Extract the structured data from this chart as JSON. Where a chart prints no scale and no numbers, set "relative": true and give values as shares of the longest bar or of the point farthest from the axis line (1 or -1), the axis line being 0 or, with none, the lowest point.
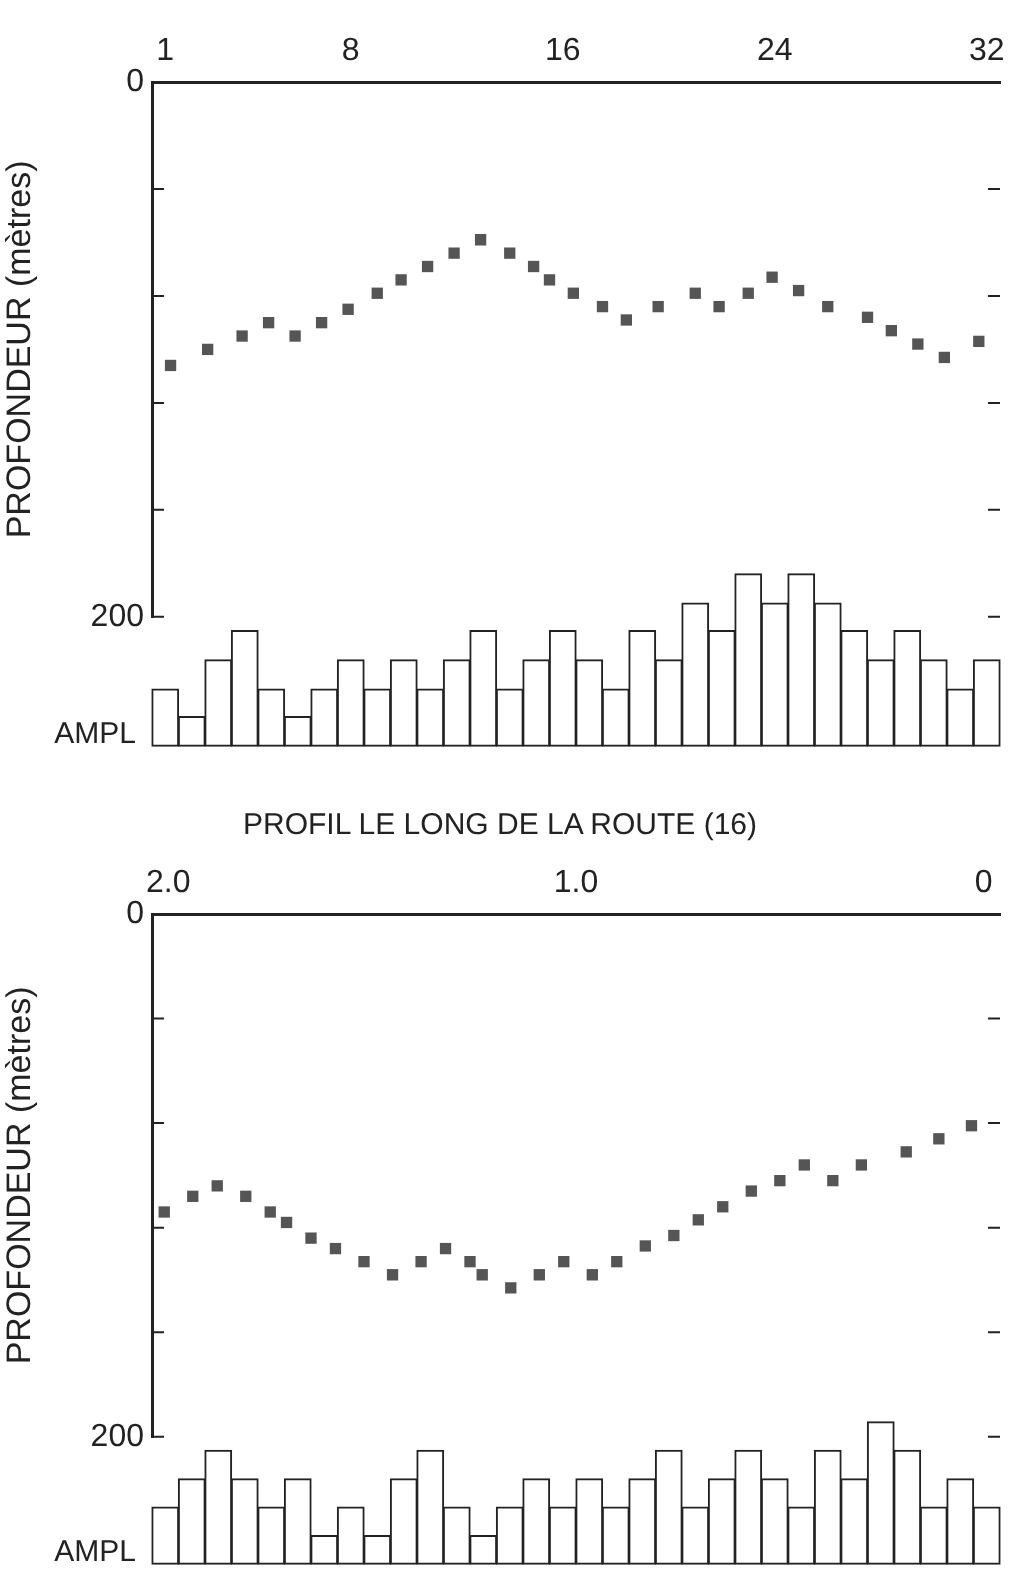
{
  "chart_data": [
    {
      "type": "scatter",
      "ylabel": "PROFONDEUR (mètres)",
      "marker": "square",
      "color": "#555555",
      "x": [
        1.2,
        2.6,
        3.9,
        4.9,
        5.9,
        6.9,
        7.9,
        9.0,
        9.9,
        10.9,
        11.9,
        12.9,
        14.0,
        14.9,
        15.5,
        16.4,
        17.5,
        18.4,
        19.6,
        21.0,
        21.9,
        23.0,
        23.9,
        24.9,
        26.0,
        27.5,
        28.4,
        29.4,
        30.4,
        31.7
      ],
      "values": [
        106,
        100,
        95,
        90,
        95,
        90,
        85,
        79,
        74,
        69,
        64,
        59,
        64,
        69,
        74,
        79,
        84,
        89,
        84,
        79,
        84,
        79,
        73,
        78,
        84,
        88,
        93,
        98,
        103,
        97
      ],
      "xlim": [
        0.5,
        32.5
      ],
      "xticks": [
        1,
        8,
        16,
        24,
        32
      ],
      "ylim": [
        200,
        0
      ],
      "yticks": [
        {
          "value": 0,
          "label": "0"
        },
        {
          "value": 40,
          "label": null
        },
        {
          "value": 80,
          "label": null
        },
        {
          "value": 120,
          "label": null
        },
        {
          "value": 160,
          "label": null
        },
        {
          "value": 200,
          "label": "200"
        }
      ]
    },
    {
      "type": "bar",
      "relative": true,
      "ylabel": "AMPL",
      "color": "#ffffff",
      "categories": [
        null,
        null,
        null,
        null,
        null,
        null,
        null,
        null,
        null,
        null,
        null,
        null,
        null,
        null,
        null,
        null,
        null,
        null,
        null,
        null,
        null,
        null,
        null,
        null,
        null,
        null,
        null,
        null,
        null,
        null,
        null,
        null
      ],
      "values": [
        0.33,
        0.17,
        0.5,
        0.67,
        0.33,
        0.17,
        0.33,
        0.5,
        0.33,
        0.5,
        0.33,
        0.5,
        0.67,
        0.33,
        0.5,
        0.67,
        0.5,
        0.33,
        0.67,
        0.5,
        0.83,
        0.67,
        1,
        0.83,
        1,
        0.83,
        0.67,
        0.5,
        0.67,
        0.5,
        0.33,
        0.5
      ]
    },
    {
      "type": "scatter",
      "title": "PROFIL LE LONG DE LA ROUTE (16)",
      "ylabel": "PROFONDEUR (mètres)",
      "marker": "square",
      "color": "#555555",
      "x": [
        2.01,
        1.94,
        1.88,
        1.81,
        1.75,
        1.71,
        1.65,
        1.59,
        1.52,
        1.45,
        1.38,
        1.32,
        1.26,
        1.23,
        1.16,
        1.09,
        1.03,
        0.96,
        0.9,
        0.83,
        0.76,
        0.7,
        0.64,
        0.57,
        0.5,
        0.44,
        0.37,
        0.3,
        0.19,
        0.11,
        0.03
      ],
      "values": [
        114,
        108,
        104,
        108,
        114,
        118,
        124,
        128,
        133,
        138,
        133,
        128,
        133,
        138,
        143,
        138,
        133,
        138,
        133,
        127,
        123,
        117,
        112,
        106,
        102,
        96,
        102,
        96,
        91,
        86,
        81
      ],
      "xlim": [
        2.04,
        -0.04
      ],
      "xticks": [
        {
          "value": 2,
          "label": "2.0"
        },
        {
          "value": 1,
          "label": "1.0"
        },
        {
          "value": 0,
          "label": "0"
        }
      ],
      "ylim": [
        200,
        0
      ],
      "yticks": [
        {
          "value": 0,
          "label": "0"
        },
        {
          "value": 40,
          "label": null
        },
        {
          "value": 80,
          "label": null
        },
        {
          "value": 120,
          "label": null
        },
        {
          "value": 160,
          "label": null
        },
        {
          "value": 200,
          "label": "200"
        }
      ]
    },
    {
      "type": "bar",
      "relative": true,
      "ylabel": "AMPL",
      "color": "#ffffff",
      "categories": [
        null,
        null,
        null,
        null,
        null,
        null,
        null,
        null,
        null,
        null,
        null,
        null,
        null,
        null,
        null,
        null,
        null,
        null,
        null,
        null,
        null,
        null,
        null,
        null,
        null,
        null,
        null,
        null,
        null,
        null,
        null,
        null
      ],
      "values": [
        0.4,
        0.6,
        0.8,
        0.6,
        0.4,
        0.6,
        0.2,
        0.4,
        0.2,
        0.6,
        0.8,
        0.4,
        0.2,
        0.4,
        0.6,
        0.4,
        0.6,
        0.4,
        0.6,
        0.8,
        0.4,
        0.6,
        0.8,
        0.6,
        0.4,
        0.8,
        0.6,
        1,
        0.8,
        0.4,
        0.6,
        0.4
      ]
    }
  ]
}
